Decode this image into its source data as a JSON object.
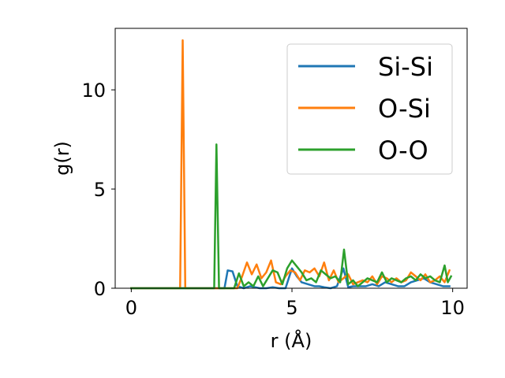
{
  "chart_data": {
    "type": "line",
    "xlabel": "r (Å)",
    "ylabel": "g(r)",
    "xlim": [
      -0.5,
      10.45
    ],
    "ylim": [
      0,
      13.1
    ],
    "xticks": [
      0,
      5,
      10
    ],
    "yticks": [
      0,
      5,
      10
    ],
    "grid": false,
    "legend_position": "top-right",
    "series": [
      {
        "name": "Si-Si",
        "color": "#1f77b4",
        "points": [
          [
            0.0,
            0
          ],
          [
            0.5,
            0
          ],
          [
            1.0,
            0
          ],
          [
            1.5,
            0
          ],
          [
            2.0,
            0
          ],
          [
            2.5,
            0
          ],
          [
            2.9,
            0
          ],
          [
            3.0,
            0.9
          ],
          [
            3.15,
            0.85
          ],
          [
            3.3,
            0.1
          ],
          [
            3.5,
            0
          ],
          [
            3.7,
            0.1
          ],
          [
            3.85,
            0.05
          ],
          [
            4.0,
            0
          ],
          [
            4.2,
            0
          ],
          [
            4.4,
            0.05
          ],
          [
            4.6,
            0
          ],
          [
            4.8,
            0
          ],
          [
            5.0,
            1.0
          ],
          [
            5.15,
            0.6
          ],
          [
            5.3,
            0.3
          ],
          [
            5.5,
            0.2
          ],
          [
            5.7,
            0.1
          ],
          [
            5.85,
            0.1
          ],
          [
            6.0,
            0.05
          ],
          [
            6.2,
            0
          ],
          [
            6.4,
            0.1
          ],
          [
            6.6,
            1.0
          ],
          [
            6.75,
            0.05
          ],
          [
            6.9,
            0.1
          ],
          [
            7.1,
            0.1
          ],
          [
            7.3,
            0.1
          ],
          [
            7.5,
            0.2
          ],
          [
            7.7,
            0.1
          ],
          [
            7.9,
            0.3
          ],
          [
            8.1,
            0.2
          ],
          [
            8.3,
            0.1
          ],
          [
            8.5,
            0.1
          ],
          [
            8.7,
            0.3
          ],
          [
            8.9,
            0.4
          ],
          [
            9.1,
            0.5
          ],
          [
            9.3,
            0.3
          ],
          [
            9.5,
            0.2
          ],
          [
            9.7,
            0.1
          ],
          [
            9.9,
            0.1
          ]
        ]
      },
      {
        "name": "O-Si",
        "color": "#ff7f0e",
        "points": [
          [
            0.0,
            0
          ],
          [
            0.5,
            0
          ],
          [
            1.0,
            0
          ],
          [
            1.4,
            0
          ],
          [
            1.52,
            0
          ],
          [
            1.6,
            12.5
          ],
          [
            1.68,
            0
          ],
          [
            2.0,
            0
          ],
          [
            2.5,
            0
          ],
          [
            3.0,
            0
          ],
          [
            3.3,
            0
          ],
          [
            3.45,
            0.6
          ],
          [
            3.6,
            1.3
          ],
          [
            3.75,
            0.7
          ],
          [
            3.9,
            1.2
          ],
          [
            4.05,
            0.5
          ],
          [
            4.2,
            0.8
          ],
          [
            4.35,
            1.4
          ],
          [
            4.5,
            0.3
          ],
          [
            4.65,
            0.2
          ],
          [
            4.8,
            0.6
          ],
          [
            4.95,
            0.9
          ],
          [
            5.1,
            0.8
          ],
          [
            5.25,
            0.4
          ],
          [
            5.4,
            0.9
          ],
          [
            5.55,
            0.8
          ],
          [
            5.7,
            1.0
          ],
          [
            5.85,
            0.6
          ],
          [
            6.0,
            1.3
          ],
          [
            6.15,
            0.4
          ],
          [
            6.3,
            0.9
          ],
          [
            6.45,
            0.3
          ],
          [
            6.6,
            0.5
          ],
          [
            6.75,
            0.7
          ],
          [
            6.9,
            0.2
          ],
          [
            7.05,
            0.3
          ],
          [
            7.2,
            0.4
          ],
          [
            7.35,
            0.3
          ],
          [
            7.5,
            0.6
          ],
          [
            7.65,
            0.2
          ],
          [
            7.8,
            0.6
          ],
          [
            7.95,
            0.5
          ],
          [
            8.1,
            0.3
          ],
          [
            8.25,
            0.5
          ],
          [
            8.4,
            0.3
          ],
          [
            8.55,
            0.4
          ],
          [
            8.7,
            0.8
          ],
          [
            8.85,
            0.6
          ],
          [
            9.0,
            0.4
          ],
          [
            9.15,
            0.7
          ],
          [
            9.3,
            0.3
          ],
          [
            9.45,
            0.4
          ],
          [
            9.6,
            0.6
          ],
          [
            9.75,
            0.3
          ],
          [
            9.9,
            0.9
          ]
        ]
      },
      {
        "name": "O-O",
        "color": "#2ca02c",
        "points": [
          [
            0.0,
            0
          ],
          [
            0.5,
            0
          ],
          [
            1.0,
            0
          ],
          [
            1.5,
            0
          ],
          [
            2.0,
            0
          ],
          [
            2.5,
            0
          ],
          [
            2.58,
            0
          ],
          [
            2.65,
            7.25
          ],
          [
            2.73,
            0
          ],
          [
            3.0,
            0
          ],
          [
            3.2,
            0
          ],
          [
            3.35,
            0.75
          ],
          [
            3.5,
            0.1
          ],
          [
            3.65,
            0.3
          ],
          [
            3.8,
            0.1
          ],
          [
            3.95,
            0.6
          ],
          [
            4.1,
            0.1
          ],
          [
            4.25,
            0.5
          ],
          [
            4.4,
            0.9
          ],
          [
            4.55,
            0.8
          ],
          [
            4.7,
            0.2
          ],
          [
            4.85,
            1.0
          ],
          [
            5.0,
            1.4
          ],
          [
            5.15,
            1.1
          ],
          [
            5.3,
            0.8
          ],
          [
            5.45,
            0.4
          ],
          [
            5.6,
            0.5
          ],
          [
            5.75,
            0.3
          ],
          [
            5.9,
            0.9
          ],
          [
            6.05,
            0.7
          ],
          [
            6.2,
            0.5
          ],
          [
            6.35,
            0.6
          ],
          [
            6.5,
            0.3
          ],
          [
            6.62,
            1.95
          ],
          [
            6.75,
            0.2
          ],
          [
            6.9,
            0.4
          ],
          [
            7.05,
            0.1
          ],
          [
            7.2,
            0.3
          ],
          [
            7.35,
            0.5
          ],
          [
            7.5,
            0.4
          ],
          [
            7.65,
            0.3
          ],
          [
            7.8,
            0.8
          ],
          [
            7.95,
            0.3
          ],
          [
            8.1,
            0.5
          ],
          [
            8.25,
            0.4
          ],
          [
            8.4,
            0.3
          ],
          [
            8.55,
            0.5
          ],
          [
            8.7,
            0.6
          ],
          [
            8.85,
            0.4
          ],
          [
            9.0,
            0.7
          ],
          [
            9.15,
            0.5
          ],
          [
            9.3,
            0.6
          ],
          [
            9.45,
            0.4
          ],
          [
            9.6,
            0.3
          ],
          [
            9.75,
            1.15
          ],
          [
            9.85,
            0.3
          ],
          [
            9.95,
            0.6
          ]
        ]
      }
    ]
  }
}
